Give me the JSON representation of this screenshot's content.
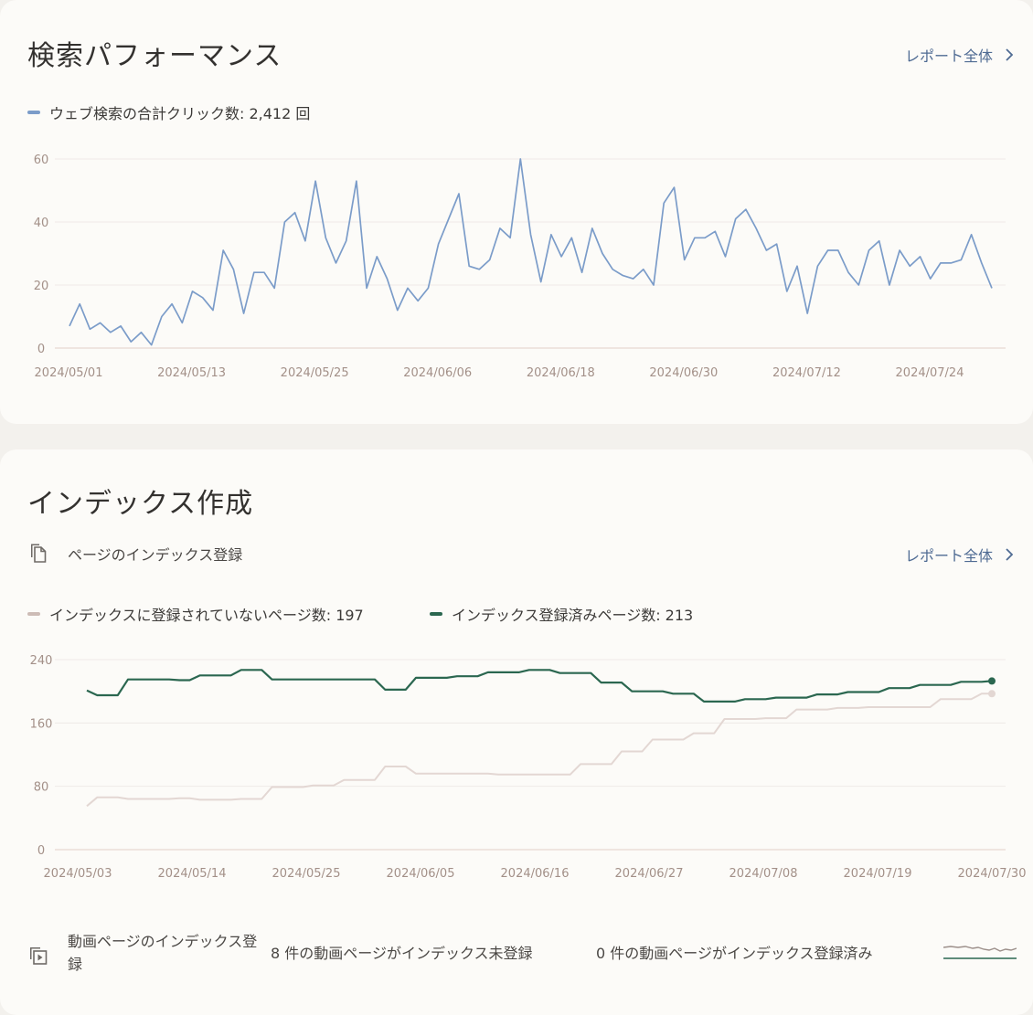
{
  "performance": {
    "title": "検索パフォーマンス",
    "report_link": "レポート全体",
    "legend": {
      "label": "ウェブ検索の合計クリック数: 2,412 回",
      "color": "#7b9cc9"
    }
  },
  "indexing": {
    "title": "インデックス作成",
    "pages_label": "ページのインデックス登録",
    "report_link": "レポート全体",
    "legend_not_indexed": {
      "label": "インデックスに登録されていないページ数: 197",
      "color": "#cdbcb6"
    },
    "legend_indexed": {
      "label": "インデックス登録済みページ数: 213",
      "color": "#2b6750"
    },
    "video": {
      "title": "動画ページのインデックス登録",
      "not_indexed_text": "8 件の動画ページがインデックス未登録",
      "indexed_text": "0 件の動画ページがインデックス登録済み"
    }
  },
  "icons": {
    "report_link": "chevron-right-icon",
    "pages": "pages-copy-icon",
    "video": "video-copy-icon",
    "sparkline": "sparkline-icon"
  },
  "chart_data": [
    {
      "type": "line",
      "title": "",
      "xlabel": "",
      "ylabel": "",
      "ylim": [
        0,
        60
      ],
      "yticks": [
        0,
        20,
        40,
        60
      ],
      "x_tick_labels": [
        "2024/05/01",
        "2024/05/13",
        "2024/05/25",
        "2024/06/06",
        "2024/06/18",
        "2024/06/30",
        "2024/07/12",
        "2024/07/24"
      ],
      "x_start": "2024/05/01",
      "x_end": "2024/07/29",
      "grid": true,
      "legend_position": "top-left",
      "series": [
        {
          "name": "ウェブ検索の合計クリック数: 2,412 回",
          "color": "#7b9cc9",
          "values": [
            7,
            14,
            6,
            8,
            5,
            7,
            2,
            5,
            1,
            10,
            14,
            8,
            18,
            16,
            12,
            31,
            25,
            11,
            24,
            24,
            19,
            40,
            43,
            34,
            53,
            35,
            27,
            34,
            53,
            19,
            29,
            22,
            12,
            19,
            15,
            19,
            33,
            41,
            49,
            26,
            25,
            28,
            38,
            35,
            60,
            36,
            21,
            36,
            29,
            35,
            24,
            38,
            30,
            25,
            23,
            22,
            25,
            20,
            46,
            51,
            28,
            35,
            35,
            37,
            29,
            41,
            44,
            38,
            31,
            33,
            18,
            26,
            11,
            26,
            31,
            31,
            24,
            20,
            31,
            34,
            20,
            31,
            26,
            29,
            22,
            27,
            27,
            28,
            36,
            27,
            19
          ]
        }
      ]
    },
    {
      "type": "line",
      "title": "",
      "xlabel": "",
      "ylabel": "",
      "ylim": [
        0,
        240
      ],
      "yticks": [
        0,
        80,
        160,
        240
      ],
      "x_tick_labels": [
        "2024/05/03",
        "2024/05/14",
        "2024/05/25",
        "2024/06/05",
        "2024/06/16",
        "2024/06/27",
        "2024/07/08",
        "2024/07/19",
        "2024/07/30"
      ],
      "x_start": "2024/05/03",
      "x_end": "2024/07/30",
      "grid": true,
      "legend_position": "top-left",
      "series": [
        {
          "name": "インデックスに登録されていないページ数: 197",
          "color": "#e3d7d3",
          "values": [
            55,
            66,
            66,
            66,
            64,
            64,
            64,
            64,
            64,
            65,
            65,
            63,
            63,
            63,
            63,
            64,
            64,
            64,
            79,
            79,
            79,
            79,
            81,
            81,
            81,
            88,
            88,
            88,
            88,
            105,
            105,
            105,
            96,
            96,
            96,
            96,
            96,
            96,
            96,
            96,
            95,
            95,
            95,
            95,
            95,
            95,
            95,
            95,
            108,
            108,
            108,
            108,
            124,
            124,
            124,
            139,
            139,
            139,
            139,
            147,
            147,
            147,
            165,
            165,
            165,
            165,
            166,
            166,
            166,
            177,
            177,
            177,
            177,
            179,
            179,
            179,
            180,
            180,
            180,
            180,
            180,
            180,
            180,
            190,
            190,
            190,
            190,
            197,
            197
          ]
        },
        {
          "name": "インデックス登録済みページ数: 213",
          "color": "#2b6750",
          "values": [
            201,
            195,
            195,
            195,
            215,
            215,
            215,
            215,
            215,
            214,
            214,
            220,
            220,
            220,
            220,
            227,
            227,
            227,
            215,
            215,
            215,
            215,
            215,
            215,
            215,
            215,
            215,
            215,
            215,
            202,
            202,
            202,
            217,
            217,
            217,
            217,
            219,
            219,
            219,
            224,
            224,
            224,
            224,
            227,
            227,
            227,
            223,
            223,
            223,
            223,
            211,
            211,
            211,
            200,
            200,
            200,
            200,
            197,
            197,
            197,
            187,
            187,
            187,
            187,
            190,
            190,
            190,
            192,
            192,
            192,
            192,
            196,
            196,
            196,
            199,
            199,
            199,
            199,
            204,
            204,
            204,
            208,
            208,
            208,
            208,
            212,
            212,
            212,
            213
          ]
        }
      ]
    }
  ]
}
